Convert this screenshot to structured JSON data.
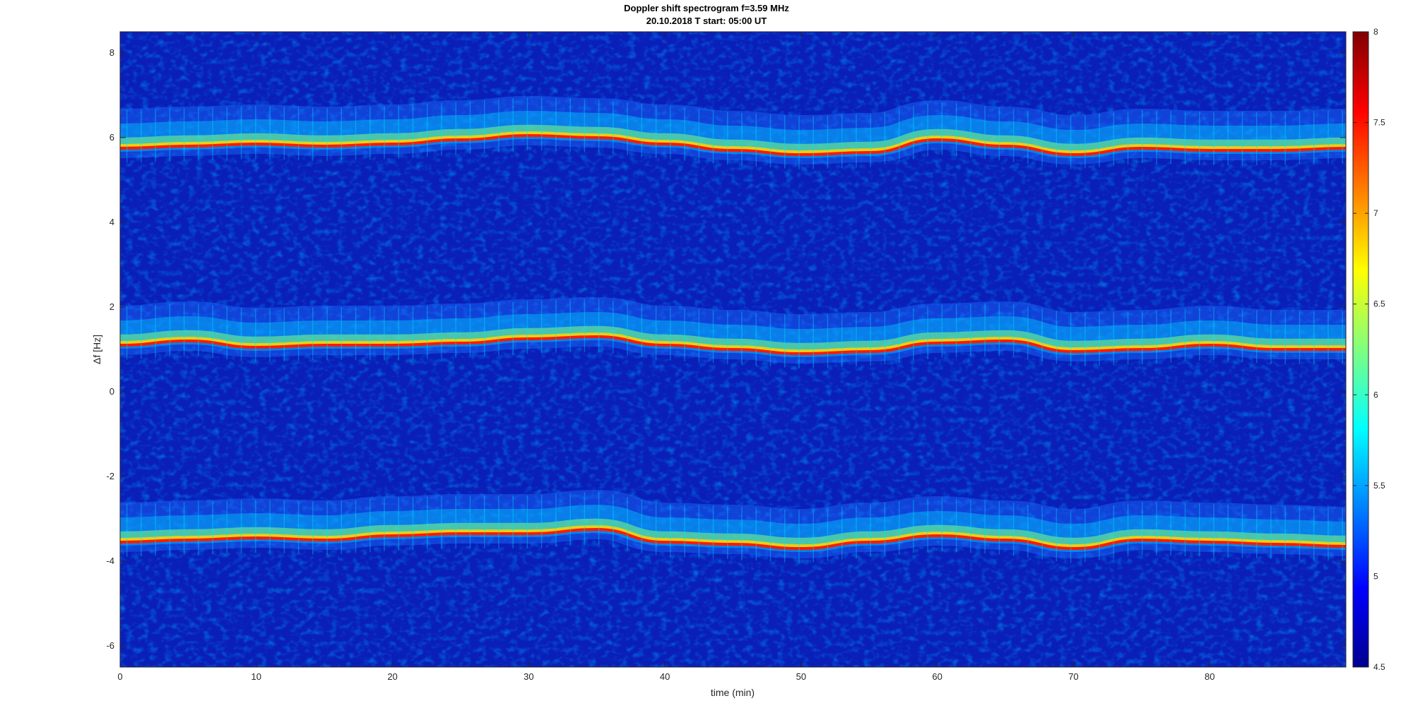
{
  "chart_data": {
    "type": "heatmap",
    "title": "Doppler shift spectrogram f=3.59 MHz",
    "subtitle": "20.10.2018    T start: 05:00 UT",
    "xlabel": "time (min)",
    "ylabel": "Δf [Hz]",
    "xlim": [
      0,
      90
    ],
    "ylim": [
      -6.5,
      8.5
    ],
    "x_ticks": [
      0,
      10,
      20,
      30,
      40,
      50,
      60,
      70,
      80
    ],
    "y_ticks": [
      -6,
      -4,
      -2,
      0,
      2,
      4,
      6,
      8
    ],
    "colorbar": {
      "colormap": "jet",
      "clim": [
        4.5,
        8
      ],
      "ticks": [
        4.5,
        5,
        5.5,
        6,
        6.5,
        7,
        7.5,
        8
      ]
    },
    "series": [
      {
        "x": [
          0,
          5,
          10,
          15,
          20,
          25,
          30,
          35,
          40,
          45,
          50,
          55,
          60,
          65,
          70,
          75,
          80,
          85,
          90
        ],
        "y": [
          5.75,
          5.8,
          5.85,
          5.8,
          5.85,
          5.95,
          6.05,
          6.0,
          5.85,
          5.7,
          5.6,
          5.65,
          5.95,
          5.8,
          5.6,
          5.75,
          5.7,
          5.7,
          5.75
        ]
      },
      {
        "x": [
          0,
          5,
          10,
          15,
          20,
          25,
          30,
          35,
          40,
          45,
          50,
          55,
          60,
          65,
          70,
          75,
          80,
          85,
          90
        ],
        "y": [
          1.1,
          1.2,
          1.05,
          1.1,
          1.1,
          1.15,
          1.25,
          1.3,
          1.1,
          1.0,
          0.9,
          0.95,
          1.15,
          1.2,
          0.95,
          1.0,
          1.1,
          1.0,
          1.0
        ]
      },
      {
        "x": [
          0,
          5,
          10,
          15,
          20,
          25,
          30,
          35,
          40,
          45,
          50,
          55,
          60,
          65,
          70,
          75,
          80,
          85,
          90
        ],
        "y": [
          -3.55,
          -3.5,
          -3.45,
          -3.5,
          -3.4,
          -3.35,
          -3.35,
          -3.25,
          -3.55,
          -3.6,
          -3.7,
          -3.55,
          -3.4,
          -3.5,
          -3.7,
          -3.5,
          -3.55,
          -3.6,
          -3.65
        ]
      }
    ]
  }
}
